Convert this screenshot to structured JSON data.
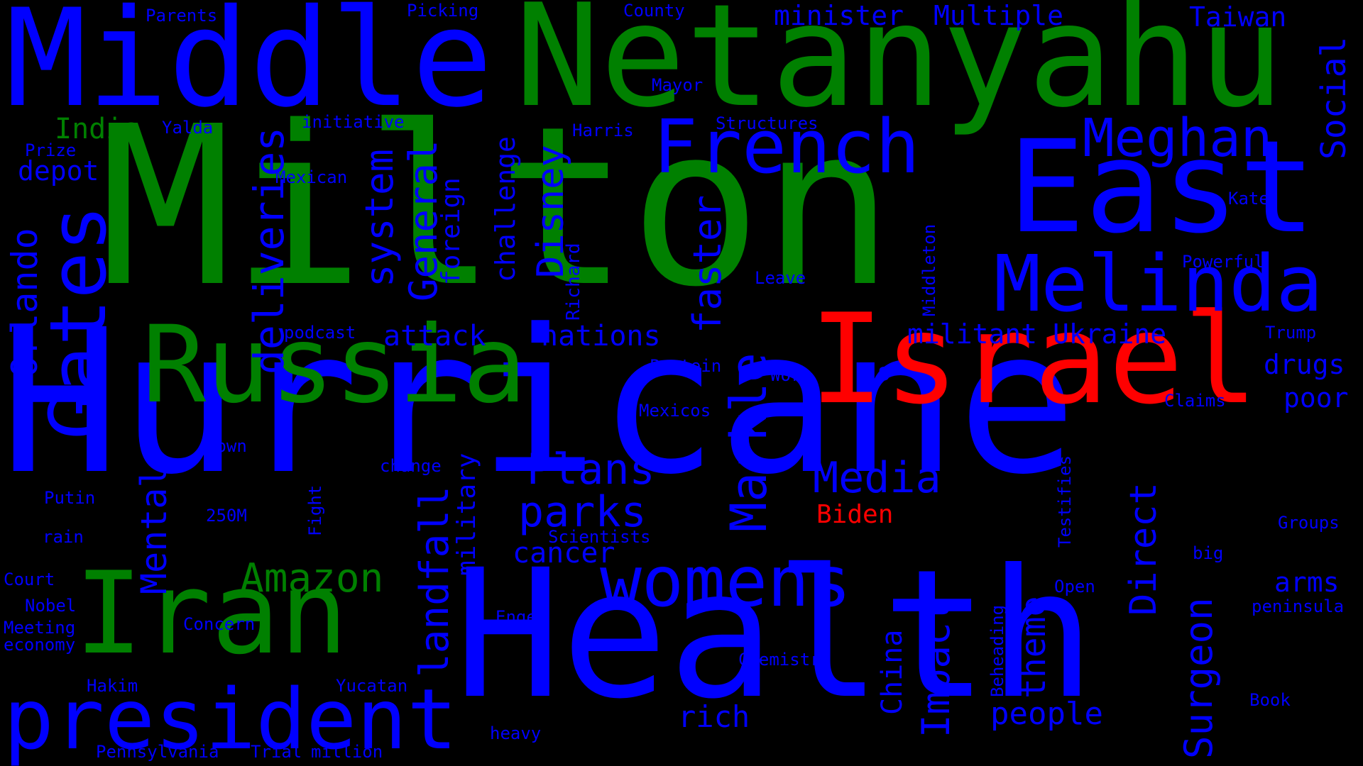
{
  "colors": {
    "blue": "#0000ff",
    "green": "#008000",
    "red": "#ff0000",
    "background": "#000000"
  },
  "words": {
    "milton": "Milton",
    "hurricane": "Hurricane",
    "health": "Health",
    "netanyahu": "Netanyahu",
    "middle": "Middle",
    "east": "East",
    "israel": "Israel",
    "russia": "Russia",
    "iran": "Iran",
    "president": "president",
    "gates": "Gates",
    "melinda": "Melinda",
    "french": "French",
    "meghan": "Meghan",
    "markle": "Markle",
    "womens": "womens",
    "amazon": "Amazon",
    "media": "Media",
    "plans": "Plans",
    "parks": "parks",
    "landfall": "landfall",
    "deliveries": "deliveries",
    "system": "system",
    "general": "General",
    "disney": "Disney",
    "faster": "faster",
    "orlando": "Orlando",
    "mental": "Mental",
    "surgeon": "Surgeon",
    "impact": "Impact",
    "direct": "Direct",
    "theme": "theme",
    "social": "Social",
    "militant": "militant",
    "ukraine": "Ukraine",
    "attack": "attack",
    "nations": "nations",
    "india": "India",
    "depot": "depot",
    "taiwan": "Taiwan",
    "minister": "minister",
    "multiple": "Multiple",
    "drugs": "drugs",
    "poor": "poor",
    "arms": "arms",
    "cancer": "cancer",
    "people": "people",
    "rich": "rich",
    "biden": "Biden",
    "military": "military",
    "foreign": "foreign",
    "challenge": "challenge",
    "china": "China",
    "richard": "Richard",
    "middleton": "Middleton",
    "beheading": "Beheading",
    "testifies": "Testifies",
    "fight": "Fight",
    "parents": "Parents",
    "picking": "Picking",
    "county": "County",
    "mayor": "Mayor",
    "yalda": "Yalda",
    "initiative": "initiative",
    "harris": "Harris",
    "structures": "Structures",
    "prize": "Prize",
    "mexican": "Mexican",
    "kate": "Kate",
    "powerful": "Powerful",
    "leave": "Leave",
    "podcast": "podcast",
    "trump": "Trump",
    "protein": "Protein",
    "work": "Work",
    "s": "s",
    "mexicos": "Mexicos",
    "claims": "Claims",
    "town": "Town",
    "change": "change",
    "putin": "Putin",
    "m250": "250M",
    "scientists": "Scientists",
    "groups": "Groups",
    "rain": "rain",
    "big": "big",
    "court": "Court",
    "open": "Open",
    "nobel": "Nobel",
    "peninsula": "peninsula",
    "meeting": "Meeting",
    "concern": "Concern",
    "engel": "Engel",
    "economy": "economy",
    "chemistry": "Chemistry",
    "hakim": "Hakim",
    "yucatan": "Yucatan",
    "book": "Book",
    "heavy": "heavy",
    "pennsylvania": "Pennsylvania",
    "trial": "Trial",
    "million": "million"
  }
}
